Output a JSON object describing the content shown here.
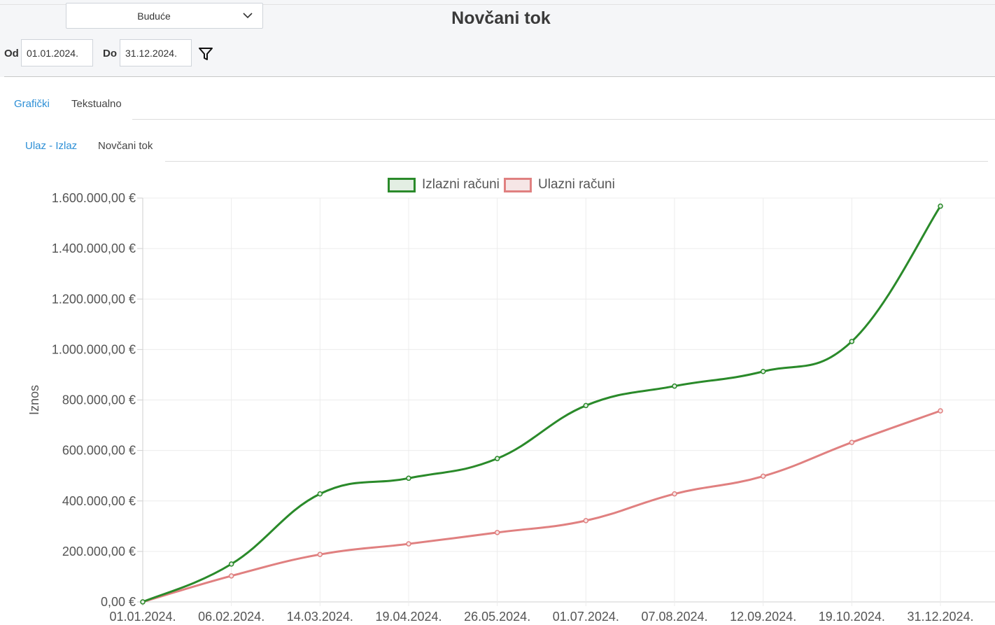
{
  "header": {
    "period_select": "Buduće",
    "title": "Novčani tok",
    "from_label": "Od",
    "from_value": "01.01.2024.",
    "to_label": "Do",
    "to_value": "31.12.2024."
  },
  "tabs": [
    {
      "label": "Grafički",
      "active": true
    },
    {
      "label": "Tekstualno",
      "active": false
    }
  ],
  "subtabs": [
    {
      "label": "Ulaz - Izlaz",
      "active": true
    },
    {
      "label": "Novčani tok",
      "active": false
    }
  ],
  "colors": {
    "accent": "#2d8fd6",
    "izlazni_line": "#2a8a2a",
    "izlazni_fill": "#e3eee3",
    "ulazni_line": "#e08080",
    "ulazni_fill": "#f6e6e6"
  },
  "icons": {
    "dropdown": "chevron-down-icon",
    "filter": "filter-icon"
  },
  "chart_data": {
    "type": "line",
    "ylabel": "Iznos",
    "ylim": [
      0,
      1600000
    ],
    "yticks": [
      "0,00 €",
      "200.000,00 €",
      "400.000,00 €",
      "600.000,00 €",
      "800.000,00 €",
      "1.000.000,00 €",
      "1.200.000,00 €",
      "1.400.000,00 €",
      "1.600.000,00 €"
    ],
    "categories": [
      "01.01.2024.",
      "06.02.2024.",
      "14.03.2024.",
      "19.04.2024.",
      "26.05.2024.",
      "01.07.2024.",
      "07.08.2024.",
      "12.09.2024.",
      "19.10.2024.",
      "31.12.2024."
    ],
    "legend_position": "top",
    "grid": true,
    "series": [
      {
        "name": "Izlazni računi",
        "values": [
          0,
          150000,
          428000,
          490000,
          568000,
          778000,
          855000,
          913000,
          1032000,
          1568000
        ]
      },
      {
        "name": "Ulazni računi",
        "values": [
          0,
          103000,
          188000,
          230000,
          275000,
          322000,
          428000,
          498000,
          632000,
          757000
        ]
      }
    ]
  }
}
